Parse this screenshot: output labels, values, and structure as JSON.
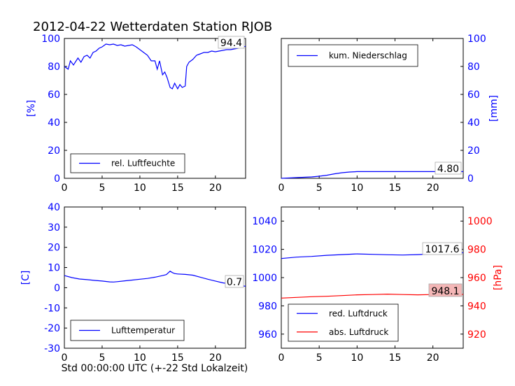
{
  "title": "2012-04-22 Wetterdaten Station RJOB",
  "xlabel": "Std 00:00:00 UTC (+-22 Std Lokalzeit)",
  "colors": {
    "blue": "#0000ff",
    "red": "#ff0000",
    "lastbox_red": "#f4b6b6"
  },
  "chart_data": [
    {
      "type": "line",
      "panel": "top-left",
      "xlim": [
        0,
        24
      ],
      "ylim": [
        0,
        100
      ],
      "xticks": [
        0,
        5,
        10,
        15,
        20
      ],
      "yticks": [
        0,
        20,
        40,
        60,
        80,
        100
      ],
      "ylabel": "[%]",
      "legend_position": "lower-center",
      "last_value_label": "94.4",
      "series": [
        {
          "name": "rel. Luftfeuchte",
          "color": "#0000ff",
          "x": [
            0,
            0.5,
            0.8,
            1.2,
            1.8,
            2.2,
            2.6,
            3.0,
            3.4,
            3.8,
            4.2,
            4.6,
            5.0,
            5.5,
            6.0,
            6.5,
            7.0,
            7.5,
            8.0,
            8.5,
            9.0,
            9.5,
            10.0,
            10.5,
            11.0,
            11.5,
            12.0,
            12.3,
            12.6,
            13.0,
            13.3,
            13.6,
            14.0,
            14.3,
            14.6,
            15.0,
            15.3,
            15.6,
            16.0,
            16.2,
            16.5,
            17.0,
            17.5,
            18.0,
            18.5,
            19.0,
            19.5,
            20.0,
            20.5,
            21.0,
            21.5,
            22.0,
            22.5,
            23.0,
            23.5,
            24.0
          ],
          "y": [
            80,
            78,
            84,
            81,
            86,
            83,
            87,
            88,
            86,
            90,
            91,
            93,
            94,
            96,
            95.5,
            96,
            95,
            95.5,
            94.5,
            95,
            95.5,
            94,
            92,
            90,
            88,
            84,
            84,
            78,
            84,
            74,
            76,
            72,
            65,
            64,
            68,
            64,
            67,
            65,
            66,
            80,
            83,
            85,
            88,
            89,
            90,
            90,
            91,
            90.5,
            91,
            91.5,
            92,
            92,
            92.5,
            93,
            93.8,
            94.4
          ]
        }
      ]
    },
    {
      "type": "line",
      "panel": "top-right",
      "xlim": [
        0,
        24
      ],
      "ylim": [
        0,
        100
      ],
      "xticks": [
        0,
        5,
        10,
        15,
        20
      ],
      "yticks": [
        0,
        20,
        40,
        60,
        80,
        100
      ],
      "ylabel": "[mm]",
      "legend_position": "upper-left",
      "last_value_label": "4.80",
      "series": [
        {
          "name": "kum. Niederschlag",
          "color": "#0000ff",
          "x": [
            0,
            2,
            4,
            5,
            6,
            7,
            8,
            9,
            10,
            12,
            16,
            20,
            24
          ],
          "y": [
            0,
            0.5,
            1.0,
            1.5,
            2.2,
            3.2,
            4.0,
            4.5,
            4.8,
            4.8,
            4.8,
            4.8,
            4.8
          ]
        }
      ]
    },
    {
      "type": "line",
      "panel": "bottom-left",
      "xlim": [
        0,
        24
      ],
      "ylim": [
        -30,
        40
      ],
      "xticks": [
        0,
        5,
        10,
        15,
        20
      ],
      "yticks": [
        -30,
        -20,
        -10,
        0,
        10,
        20,
        30,
        40
      ],
      "ylabel": "[C]",
      "legend_position": "lower-center",
      "last_value_label": "0.7",
      "series": [
        {
          "name": "Lufttemperatur",
          "color": "#0000ff",
          "x": [
            0,
            1,
            2,
            3,
            4,
            5,
            6,
            6.5,
            7,
            8,
            9,
            10,
            11,
            12,
            13,
            13.5,
            14,
            14.3,
            14.6,
            15,
            16,
            17,
            18,
            19,
            20,
            21,
            22,
            23,
            24
          ],
          "y": [
            6,
            5,
            4.3,
            4,
            3.6,
            3.3,
            2.9,
            2.8,
            3,
            3.4,
            3.8,
            4.2,
            4.6,
            5.2,
            6,
            6.5,
            8.2,
            7.5,
            7,
            6.8,
            6.6,
            6.2,
            5.2,
            4.2,
            3.3,
            2.4,
            1.8,
            1.2,
            0.7
          ]
        }
      ]
    },
    {
      "type": "line",
      "panel": "bottom-right",
      "xlim": [
        0,
        24
      ],
      "ylim": [
        950,
        1050
      ],
      "ylim_right": [
        910,
        1010
      ],
      "xticks": [
        0,
        5,
        10,
        15,
        20
      ],
      "yticks": [
        960,
        980,
        1000,
        1020,
        1040
      ],
      "yticks_right": [
        920,
        940,
        960,
        980,
        1000
      ],
      "ylabel_right": "[hPa]",
      "legend_position": "lower-left",
      "last_value_labels": [
        "1017.6",
        "948.1"
      ],
      "series": [
        {
          "name": "red. Luftdruck",
          "color": "#0000ff",
          "axis": "left",
          "x": [
            0,
            2,
            4,
            6,
            8,
            10,
            12,
            14,
            16,
            18,
            20,
            22,
            24
          ],
          "y": [
            1013.5,
            1014.5,
            1015.0,
            1015.8,
            1016.3,
            1016.8,
            1016.5,
            1016.2,
            1016.0,
            1016.3,
            1016.8,
            1017.3,
            1017.6
          ]
        },
        {
          "name": "abs. Luftdruck",
          "color": "#ff0000",
          "axis": "right",
          "x": [
            0,
            2,
            4,
            6,
            8,
            10,
            12,
            14,
            16,
            18,
            20,
            22,
            24
          ],
          "y": [
            945.5,
            946.0,
            946.5,
            946.8,
            947.3,
            947.8,
            948.0,
            948.3,
            948.0,
            947.8,
            948.0,
            948.3,
            948.1
          ]
        }
      ]
    }
  ]
}
